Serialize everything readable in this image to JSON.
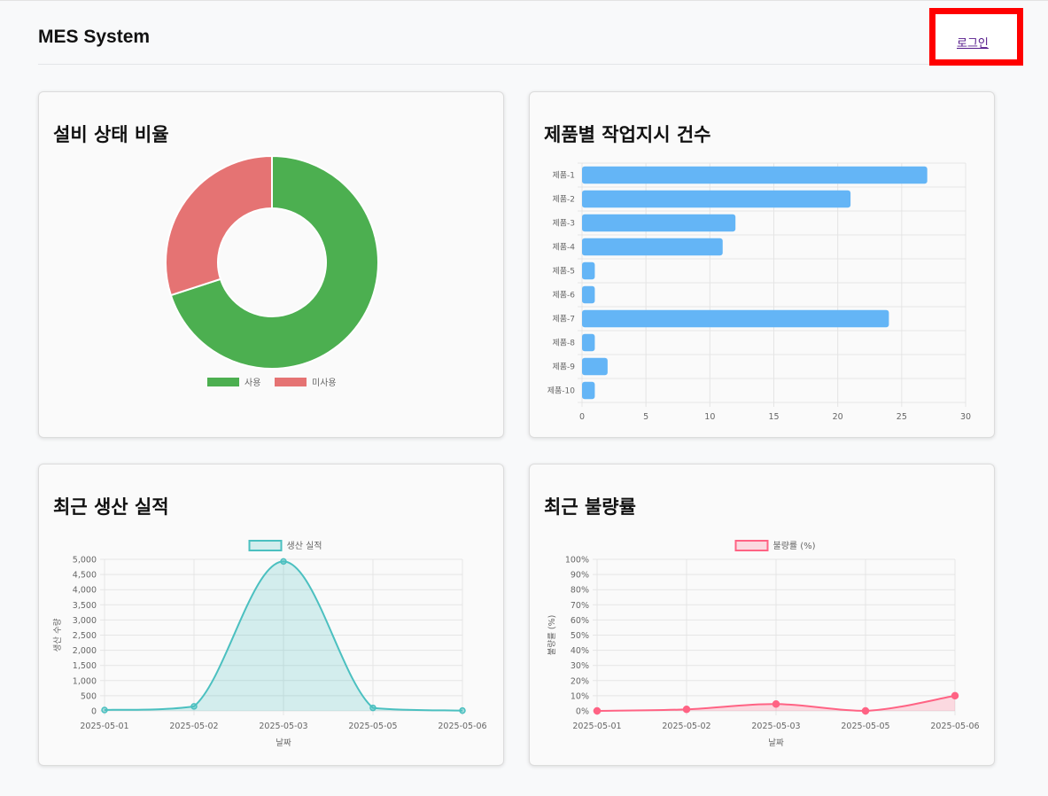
{
  "header": {
    "brand": "MES System",
    "login_label": "로그인"
  },
  "cards": {
    "equipment": {
      "title": "설비 상태 비율"
    },
    "orders": {
      "title": "제품별 작업지시 건수"
    },
    "production": {
      "title": "최근 생산 실적"
    },
    "defect": {
      "title": "최근 불량률"
    }
  },
  "colors": {
    "green": "#4caf50",
    "red": "#e57373",
    "blue": "#64b5f6",
    "teal": "#4bc0c0",
    "pink": "#ff6384"
  },
  "chart_data": [
    {
      "type": "pie",
      "labels": [
        "사용",
        "미사용"
      ],
      "values": [
        70,
        30
      ],
      "colors": [
        "#4caf50",
        "#e57373"
      ],
      "legend": "bottom"
    },
    {
      "type": "bar",
      "orientation": "horizontal",
      "categories": [
        "제품-1",
        "제품-2",
        "제품-3",
        "제품-4",
        "제품-5",
        "제품-6",
        "제품-7",
        "제품-8",
        "제품-9",
        "제품-10"
      ],
      "values": [
        27,
        21,
        12,
        11,
        1,
        1,
        24,
        1,
        2,
        1
      ],
      "xlim": [
        0,
        30
      ],
      "xticks": [
        "0",
        "5",
        "10",
        "15",
        "20",
        "25",
        "30"
      ],
      "color": "#64b5f6",
      "grid": true
    },
    {
      "type": "area",
      "x": [
        "2025-05-01",
        "2025-05-02",
        "2025-05-03",
        "2025-05-05",
        "2025-05-06"
      ],
      "series": [
        {
          "name": "생산 실적",
          "values": [
            30,
            150,
            4930,
            100,
            10
          ]
        }
      ],
      "ylim": [
        0,
        5000
      ],
      "yticks": [
        "5,000",
        "4,500",
        "4,000",
        "3,500",
        "3,000",
        "2,500",
        "2,000",
        "1,500",
        "1,000",
        "500",
        "0"
      ],
      "xlabel": "날짜",
      "ylabel": "생산 수량",
      "color": "#4bc0c0",
      "legend": "top",
      "grid": true
    },
    {
      "type": "area",
      "x": [
        "2025-05-01",
        "2025-05-02",
        "2025-05-03",
        "2025-05-05",
        "2025-05-06"
      ],
      "series": [
        {
          "name": "불량률 (%)",
          "values": [
            0,
            1,
            4.5,
            0,
            10
          ]
        }
      ],
      "ylim": [
        0,
        100
      ],
      "yticks": [
        "100%",
        "90%",
        "80%",
        "70%",
        "60%",
        "50%",
        "40%",
        "30%",
        "20%",
        "10%",
        "0%"
      ],
      "xlabel": "날짜",
      "ylabel": "불량률 (%)",
      "color": "#ff6384",
      "legend": "top",
      "grid": true
    }
  ]
}
